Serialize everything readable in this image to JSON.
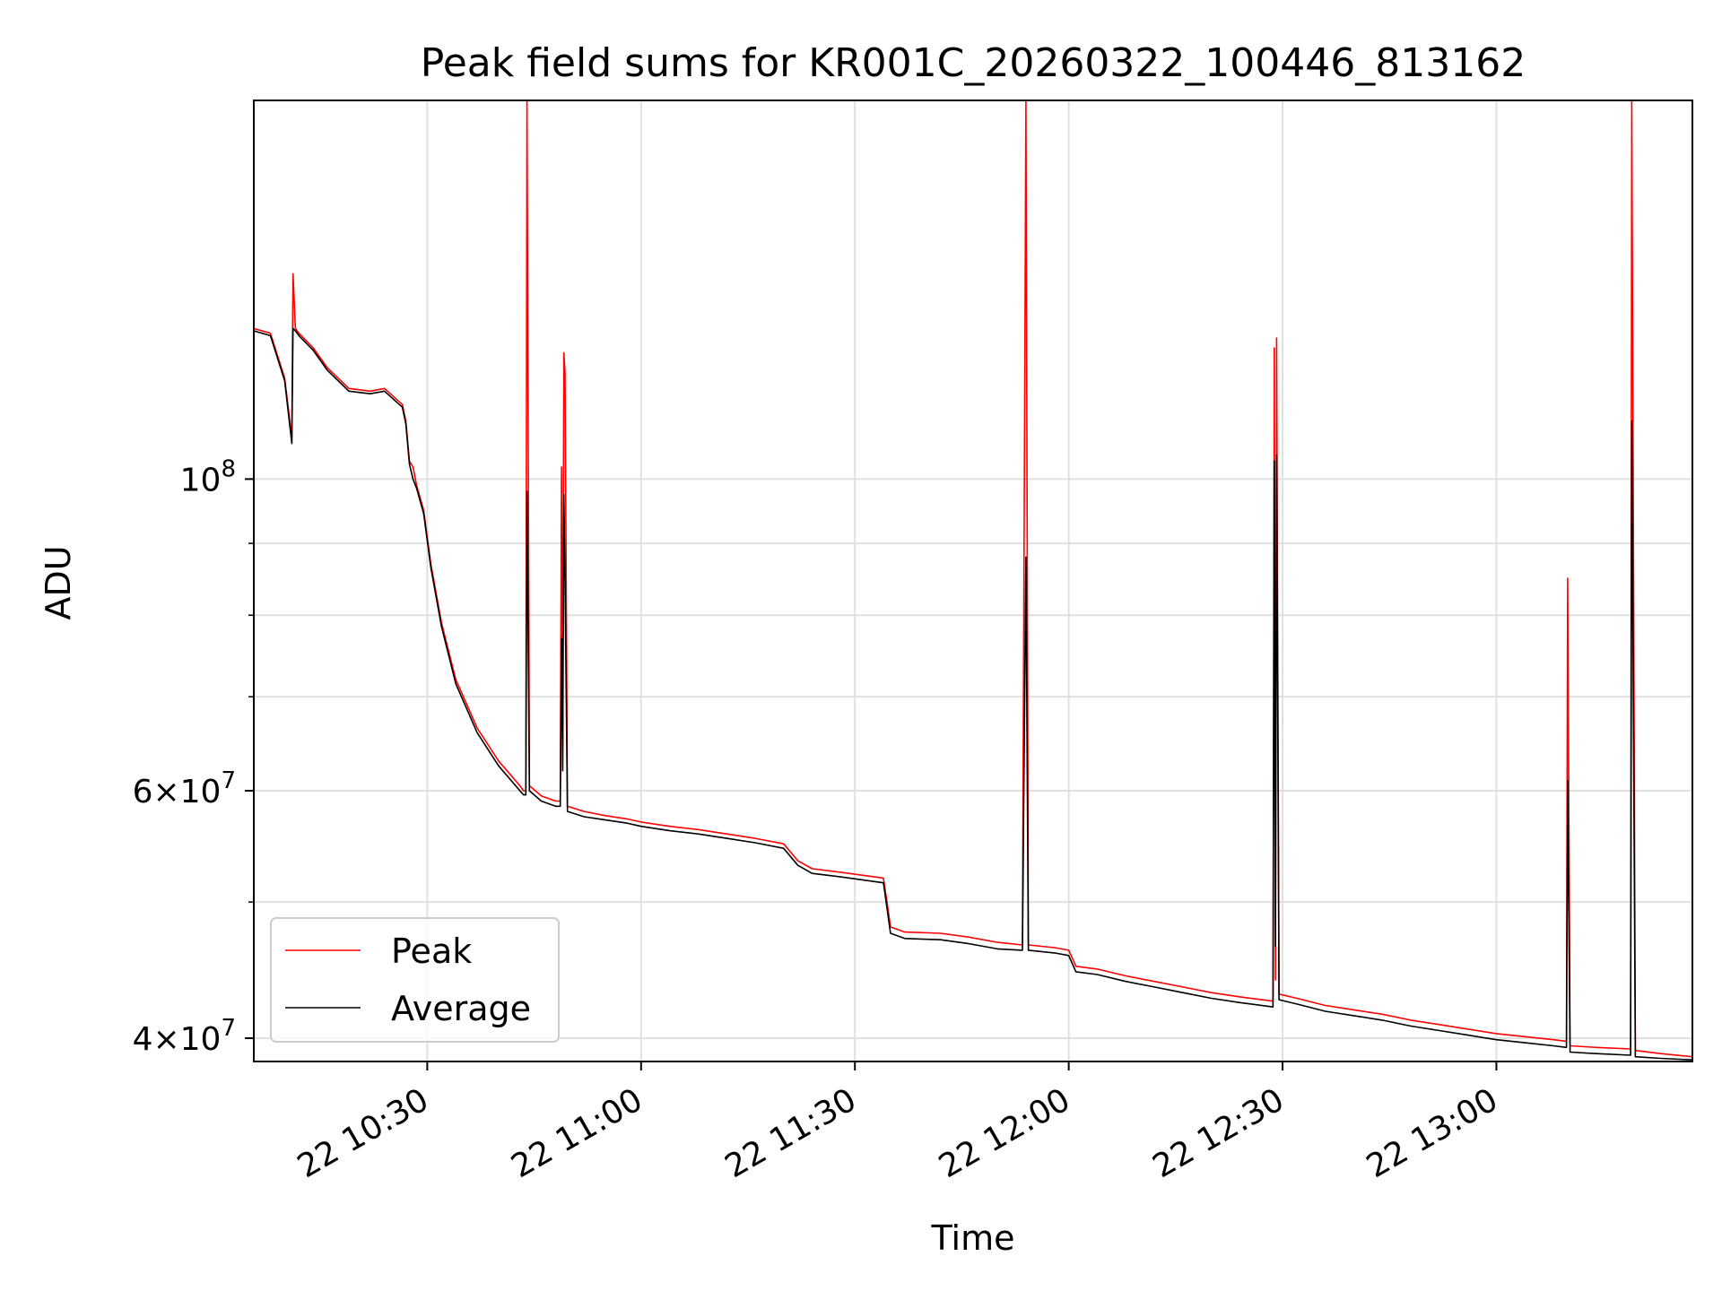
{
  "chart_data": {
    "type": "line",
    "title": "Peak field sums for KR001C_20260322_100446_813162",
    "xlabel": "Time",
    "ylabel": "ADU",
    "yscale": "log",
    "x_range": [
      "2026-03-22 10:05:40",
      "2026-03-22 13:27:30"
    ],
    "ylim": [
      38500000,
      186000000
    ],
    "grid": true,
    "legend_position": "lower-left",
    "x_ticks": [
      {
        "value": "2026-03-22 10:30",
        "label": "22 10:30"
      },
      {
        "value": "2026-03-22 11:00",
        "label": "22 11:00"
      },
      {
        "value": "2026-03-22 11:30",
        "label": "22 11:30"
      },
      {
        "value": "2026-03-22 12:00",
        "label": "22 12:00"
      },
      {
        "value": "2026-03-22 12:30",
        "label": "22 12:30"
      },
      {
        "value": "2026-03-22 13:00",
        "label": "22 13:00"
      }
    ],
    "y_ticks": [
      {
        "value": 40000000,
        "base": "4",
        "exp": "7",
        "times": true
      },
      {
        "value": 60000000,
        "base": "6",
        "exp": "7",
        "times": true
      },
      {
        "value": 100000000,
        "base": "10",
        "exp": "8",
        "times": false
      }
    ],
    "y_minor_ticks": [
      50000000,
      70000000,
      80000000,
      90000000
    ],
    "series": [
      {
        "name": "Peak",
        "color": "#ff0000",
        "points": [
          [
            "10:05:40",
            128000000
          ],
          [
            "10:08:00",
            127000000
          ],
          [
            "10:10:00",
            118000000
          ],
          [
            "10:11:00",
            107000000
          ],
          [
            "10:11:10",
            140000000
          ],
          [
            "10:11:30",
            128000000
          ],
          [
            "10:12:00",
            127000000
          ],
          [
            "10:14:00",
            124000000
          ],
          [
            "10:16:00",
            120000000
          ],
          [
            "10:19:00",
            116000000
          ],
          [
            "10:22:00",
            115500000
          ],
          [
            "10:24:00",
            116000000
          ],
          [
            "10:26:30",
            113000000
          ],
          [
            "10:27:00",
            110000000
          ],
          [
            "10:27:30",
            103000000
          ],
          [
            "10:28:00",
            102000000
          ],
          [
            "10:28:30",
            99000000
          ],
          [
            "10:29:30",
            95000000
          ],
          [
            "10:30:30",
            87000000
          ],
          [
            "10:32:00",
            79000000
          ],
          [
            "10:34:00",
            72000000
          ],
          [
            "10:37:00",
            66500000
          ],
          [
            "10:40:00",
            63000000
          ],
          [
            "10:43:00",
            60500000
          ],
          [
            "10:43:30",
            60000000
          ],
          [
            "10:43:50",
            60000000
          ],
          [
            "10:44:00",
            186000000
          ],
          [
            "10:44:20",
            60500000
          ],
          [
            "10:46:00",
            59500000
          ],
          [
            "10:48:00",
            59000000
          ],
          [
            "10:48:40",
            59000000
          ],
          [
            "10:48:50",
            102000000
          ],
          [
            "10:49:00",
            64000000
          ],
          [
            "10:49:10",
            123000000
          ],
          [
            "10:49:20",
            119000000
          ],
          [
            "10:49:40",
            58500000
          ],
          [
            "10:52:00",
            58000000
          ],
          [
            "10:55:00",
            57600000
          ],
          [
            "10:58:00",
            57300000
          ],
          [
            "11:00:00",
            57000000
          ],
          [
            "11:04:00",
            56600000
          ],
          [
            "11:08:00",
            56300000
          ],
          [
            "11:12:00",
            55900000
          ],
          [
            "11:16:00",
            55500000
          ],
          [
            "11:20:00",
            55000000
          ],
          [
            "11:22:00",
            53500000
          ],
          [
            "11:24:00",
            52800000
          ],
          [
            "11:28:00",
            52500000
          ],
          [
            "11:34:00",
            52000000
          ],
          [
            "11:34:30",
            50000000
          ],
          [
            "11:35:00",
            48000000
          ],
          [
            "11:37:00",
            47600000
          ],
          [
            "11:42:00",
            47500000
          ],
          [
            "11:46:00",
            47200000
          ],
          [
            "11:50:00",
            46800000
          ],
          [
            "11:53:30",
            46600000
          ],
          [
            "11:54:00",
            186000000
          ],
          [
            "11:54:20",
            46600000
          ],
          [
            "11:58:00",
            46400000
          ],
          [
            "12:00:00",
            46200000
          ],
          [
            "12:01:00",
            45000000
          ],
          [
            "12:04:00",
            44800000
          ],
          [
            "12:08:00",
            44300000
          ],
          [
            "12:12:00",
            43900000
          ],
          [
            "12:16:00",
            43500000
          ],
          [
            "12:20:00",
            43100000
          ],
          [
            "12:24:00",
            42800000
          ],
          [
            "12:28:40",
            42500000
          ],
          [
            "12:28:50",
            124000000
          ],
          [
            "12:29:00",
            44000000
          ],
          [
            "12:29:10",
            126000000
          ],
          [
            "12:29:30",
            43000000
          ],
          [
            "12:32:00",
            42700000
          ],
          [
            "12:36:00",
            42200000
          ],
          [
            "12:40:00",
            41900000
          ],
          [
            "12:44:00",
            41600000
          ],
          [
            "12:48:00",
            41200000
          ],
          [
            "12:52:00",
            40900000
          ],
          [
            "12:56:00",
            40600000
          ],
          [
            "13:00:00",
            40300000
          ],
          [
            "13:04:00",
            40100000
          ],
          [
            "13:08:00",
            39900000
          ],
          [
            "13:09:50",
            39800000
          ],
          [
            "13:10:00",
            85000000
          ],
          [
            "13:10:20",
            39500000
          ],
          [
            "13:14:00",
            39400000
          ],
          [
            "13:18:50",
            39300000
          ],
          [
            "13:19:00",
            186000000
          ],
          [
            "13:19:30",
            39200000
          ],
          [
            "13:23:00",
            39000000
          ],
          [
            "13:27:30",
            38800000
          ]
        ]
      },
      {
        "name": "Average",
        "color": "#000000",
        "points": [
          [
            "10:05:40",
            127500000
          ],
          [
            "10:08:00",
            126500000
          ],
          [
            "10:10:00",
            117500000
          ],
          [
            "10:11:00",
            106000000
          ],
          [
            "10:11:10",
            128000000
          ],
          [
            "10:11:30",
            127500000
          ],
          [
            "10:12:00",
            126500000
          ],
          [
            "10:14:00",
            123500000
          ],
          [
            "10:16:00",
            119500000
          ],
          [
            "10:19:00",
            115500000
          ],
          [
            "10:22:00",
            115000000
          ],
          [
            "10:24:00",
            115500000
          ],
          [
            "10:26:30",
            112500000
          ],
          [
            "10:27:00",
            109500000
          ],
          [
            "10:27:30",
            102500000
          ],
          [
            "10:28:00",
            100000000
          ],
          [
            "10:28:30",
            98500000
          ],
          [
            "10:29:30",
            94500000
          ],
          [
            "10:30:30",
            86500000
          ],
          [
            "10:32:00",
            78500000
          ],
          [
            "10:34:00",
            71500000
          ],
          [
            "10:37:00",
            66000000
          ],
          [
            "10:40:00",
            62500000
          ],
          [
            "10:43:00",
            60000000
          ],
          [
            "10:43:30",
            59600000
          ],
          [
            "10:43:50",
            59600000
          ],
          [
            "10:44:00",
            98000000
          ],
          [
            "10:44:20",
            60000000
          ],
          [
            "10:46:00",
            59000000
          ],
          [
            "10:48:00",
            58500000
          ],
          [
            "10:48:40",
            58500000
          ],
          [
            "10:48:50",
            77000000
          ],
          [
            "10:49:00",
            62000000
          ],
          [
            "10:49:10",
            97500000
          ],
          [
            "10:49:20",
            85000000
          ],
          [
            "10:49:40",
            58000000
          ],
          [
            "10:52:00",
            57500000
          ],
          [
            "10:55:00",
            57200000
          ],
          [
            "10:58:00",
            56900000
          ],
          [
            "11:00:00",
            56600000
          ],
          [
            "11:04:00",
            56200000
          ],
          [
            "11:08:00",
            55900000
          ],
          [
            "11:12:00",
            55500000
          ],
          [
            "11:16:00",
            55100000
          ],
          [
            "11:20:00",
            54600000
          ],
          [
            "11:22:00",
            53100000
          ],
          [
            "11:24:00",
            52400000
          ],
          [
            "11:28:00",
            52100000
          ],
          [
            "11:34:00",
            51600000
          ],
          [
            "11:34:30",
            49500000
          ],
          [
            "11:35:00",
            47500000
          ],
          [
            "11:37:00",
            47100000
          ],
          [
            "11:42:00",
            47000000
          ],
          [
            "11:46:00",
            46700000
          ],
          [
            "11:50:00",
            46300000
          ],
          [
            "11:53:30",
            46200000
          ],
          [
            "11:54:00",
            88000000
          ],
          [
            "11:54:20",
            46200000
          ],
          [
            "11:58:00",
            46000000
          ],
          [
            "12:00:00",
            45800000
          ],
          [
            "12:01:00",
            44600000
          ],
          [
            "12:04:00",
            44400000
          ],
          [
            "12:08:00",
            43900000
          ],
          [
            "12:12:00",
            43500000
          ],
          [
            "12:16:00",
            43100000
          ],
          [
            "12:20:00",
            42700000
          ],
          [
            "12:24:00",
            42400000
          ],
          [
            "12:28:40",
            42100000
          ],
          [
            "12:28:50",
            103000000
          ],
          [
            "12:29:00",
            46500000
          ],
          [
            "12:29:10",
            104000000
          ],
          [
            "12:29:30",
            42600000
          ],
          [
            "12:32:00",
            42300000
          ],
          [
            "12:36:00",
            41800000
          ],
          [
            "12:40:00",
            41500000
          ],
          [
            "12:44:00",
            41200000
          ],
          [
            "12:48:00",
            40800000
          ],
          [
            "12:52:00",
            40500000
          ],
          [
            "12:56:00",
            40200000
          ],
          [
            "13:00:00",
            39900000
          ],
          [
            "13:04:00",
            39700000
          ],
          [
            "13:08:00",
            39500000
          ],
          [
            "13:09:50",
            39400000
          ],
          [
            "13:10:00",
            61000000
          ],
          [
            "13:10:20",
            39100000
          ],
          [
            "13:14:00",
            39000000
          ],
          [
            "13:18:50",
            38900000
          ],
          [
            "13:19:00",
            110000000
          ],
          [
            "13:19:30",
            38800000
          ],
          [
            "13:23:00",
            38700000
          ],
          [
            "13:27:30",
            38600000
          ]
        ]
      }
    ]
  }
}
